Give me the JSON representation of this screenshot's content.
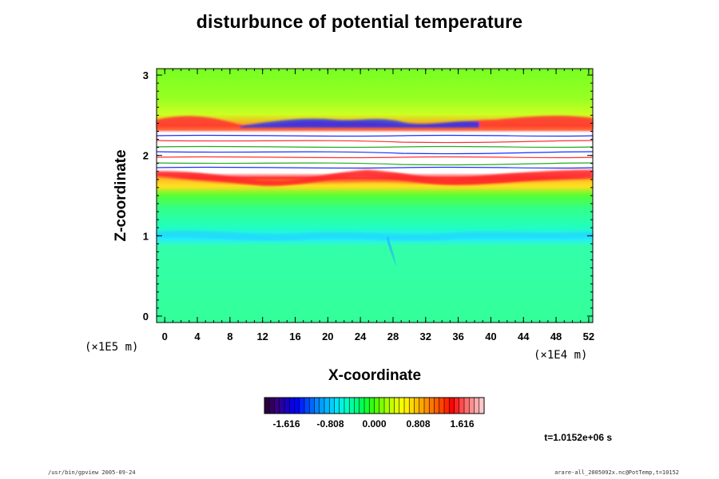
{
  "chart_data": {
    "type": "heatmap",
    "title": "disturbunce of potential temperature",
    "xlabel": "X-coordinate",
    "ylabel": "Z-coordinate",
    "x_unit": "(×1E4 m)",
    "y_unit": "(×1E5 m)",
    "xlim": [
      -1,
      52.5
    ],
    "ylim": [
      -0.08,
      3.08
    ],
    "x_ticks": [
      "0",
      "4",
      "8",
      "12",
      "16",
      "20",
      "24",
      "28",
      "32",
      "36",
      "40",
      "44",
      "48",
      "52"
    ],
    "y_ticks": [
      "0",
      "1",
      "2",
      "3"
    ],
    "colorbar": {
      "min": -2.02,
      "max": 2.02,
      "ticks": [
        "-1.616",
        "-0.808",
        "0.000",
        "0.808",
        "1.616"
      ],
      "colors": [
        "#2a003f",
        "#3a007f",
        "#1a00c0",
        "#0000ff",
        "#0040ff",
        "#0080ff",
        "#00b0ff",
        "#00e0ff",
        "#00ffd0",
        "#00ff90",
        "#00ff40",
        "#40ff00",
        "#90ff00",
        "#d0ff00",
        "#ffff00",
        "#ffd000",
        "#ffa000",
        "#ff7000",
        "#ff4000",
        "#ff0000",
        "#ff5050",
        "#ff9090",
        "#ffc8c8"
      ]
    },
    "time": "t=1.0152e+06 s"
  },
  "colors": {
    "background_green": "#33ff44",
    "upper_green": "#88ff22",
    "lower_green": "#33ff99",
    "cyan_band": "#22ffcc"
  },
  "footer": {
    "left": "/usr/bin/gpview 2005-09-24",
    "right": "arare-all_2005092x.nc@PotTemp,t=10152"
  }
}
